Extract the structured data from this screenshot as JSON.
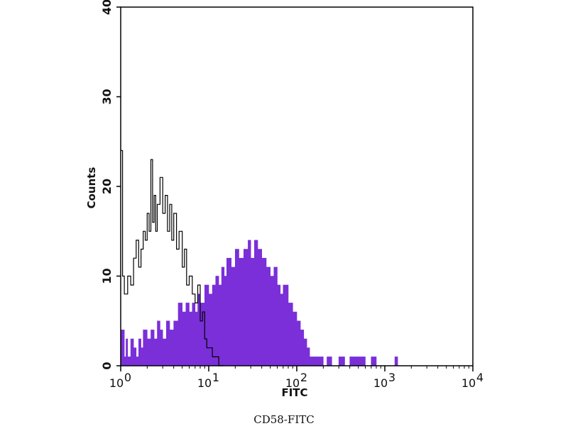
{
  "caption": "CD58-FITC",
  "chart_data": {
    "type": "histogram",
    "xlabel": "FITC",
    "ylabel": "Counts",
    "x_scale": "log",
    "xlim": [
      1,
      10000
    ],
    "ylim": [
      0,
      40
    ],
    "x_ticks": [
      {
        "base": "10",
        "exp": "0",
        "value": 1
      },
      {
        "base": "10",
        "exp": "1",
        "value": 10
      },
      {
        "base": "10",
        "exp": "2",
        "value": 100
      },
      {
        "base": "10",
        "exp": "3",
        "value": 1000
      },
      {
        "base": "10",
        "exp": "4",
        "value": 10000
      }
    ],
    "y_ticks": [
      {
        "label": "0",
        "value": 0
      },
      {
        "label": "10",
        "value": 10
      },
      {
        "label": "20",
        "value": 20
      },
      {
        "label": "30",
        "value": 30
      },
      {
        "label": "40",
        "value": 40
      }
    ],
    "grid": false,
    "colors": {
      "stained": "#7a2fd8",
      "control": "#000000",
      "axes": "#000000"
    },
    "series": [
      {
        "kind": "filled-histogram",
        "color": "#7a2fd8",
        "points": [
          [
            1.0,
            4
          ],
          [
            1.1,
            1
          ],
          [
            1.15,
            3
          ],
          [
            1.2,
            1
          ],
          [
            1.3,
            3
          ],
          [
            1.4,
            2
          ],
          [
            1.5,
            1
          ],
          [
            1.6,
            3
          ],
          [
            1.7,
            2
          ],
          [
            1.8,
            4
          ],
          [
            2.0,
            3
          ],
          [
            2.2,
            4
          ],
          [
            2.4,
            3
          ],
          [
            2.6,
            5
          ],
          [
            2.8,
            4
          ],
          [
            3.0,
            3
          ],
          [
            3.3,
            5
          ],
          [
            3.6,
            4
          ],
          [
            4.0,
            5
          ],
          [
            4.5,
            7
          ],
          [
            5.0,
            6
          ],
          [
            5.5,
            7
          ],
          [
            6.0,
            6
          ],
          [
            6.5,
            7
          ],
          [
            7.0,
            6
          ],
          [
            7.5,
            8
          ],
          [
            8.0,
            7
          ],
          [
            9.0,
            9
          ],
          [
            10.0,
            8
          ],
          [
            11,
            9
          ],
          [
            12,
            10
          ],
          [
            13,
            9
          ],
          [
            14,
            11
          ],
          [
            15,
            10
          ],
          [
            16,
            12
          ],
          [
            18,
            11
          ],
          [
            20,
            13
          ],
          [
            22,
            12
          ],
          [
            25,
            13
          ],
          [
            28,
            14
          ],
          [
            30,
            12
          ],
          [
            33,
            14
          ],
          [
            36,
            13
          ],
          [
            40,
            12
          ],
          [
            45,
            11
          ],
          [
            50,
            10
          ],
          [
            55,
            11
          ],
          [
            60,
            9
          ],
          [
            65,
            8
          ],
          [
            70,
            9
          ],
          [
            80,
            7
          ],
          [
            90,
            6
          ],
          [
            100,
            5
          ],
          [
            110,
            4
          ],
          [
            120,
            3
          ],
          [
            130,
            2
          ],
          [
            140,
            1
          ],
          [
            150,
            1
          ],
          [
            170,
            1
          ],
          [
            200,
            0
          ],
          [
            220,
            1
          ],
          [
            250,
            0
          ],
          [
            300,
            1
          ],
          [
            350,
            0
          ],
          [
            400,
            1
          ],
          [
            500,
            1
          ],
          [
            600,
            0
          ],
          [
            700,
            1
          ],
          [
            800,
            0
          ],
          [
            1000,
            0
          ],
          [
            1300,
            1
          ],
          [
            1400,
            0
          ]
        ]
      },
      {
        "kind": "line-histogram",
        "color": "#000000",
        "points": [
          [
            1.0,
            24
          ],
          [
            1.05,
            10
          ],
          [
            1.1,
            8
          ],
          [
            1.2,
            10
          ],
          [
            1.3,
            9
          ],
          [
            1.4,
            12
          ],
          [
            1.5,
            14
          ],
          [
            1.6,
            11
          ],
          [
            1.7,
            13
          ],
          [
            1.8,
            15
          ],
          [
            1.9,
            14
          ],
          [
            2.0,
            17
          ],
          [
            2.1,
            15
          ],
          [
            2.2,
            23
          ],
          [
            2.3,
            16
          ],
          [
            2.4,
            19
          ],
          [
            2.5,
            15
          ],
          [
            2.6,
            18
          ],
          [
            2.8,
            21
          ],
          [
            3.0,
            17
          ],
          [
            3.2,
            19
          ],
          [
            3.4,
            15
          ],
          [
            3.6,
            18
          ],
          [
            3.8,
            14
          ],
          [
            4.0,
            17
          ],
          [
            4.3,
            13
          ],
          [
            4.6,
            15
          ],
          [
            5.0,
            11
          ],
          [
            5.3,
            13
          ],
          [
            5.6,
            9
          ],
          [
            6.0,
            10
          ],
          [
            6.5,
            8
          ],
          [
            7.0,
            7
          ],
          [
            7.5,
            9
          ],
          [
            8.0,
            5
          ],
          [
            8.5,
            6
          ],
          [
            9.0,
            3
          ],
          [
            9.5,
            2
          ],
          [
            10,
            2
          ],
          [
            11,
            1
          ],
          [
            12,
            1
          ],
          [
            13,
            0
          ],
          [
            14,
            0
          ]
        ]
      }
    ]
  }
}
